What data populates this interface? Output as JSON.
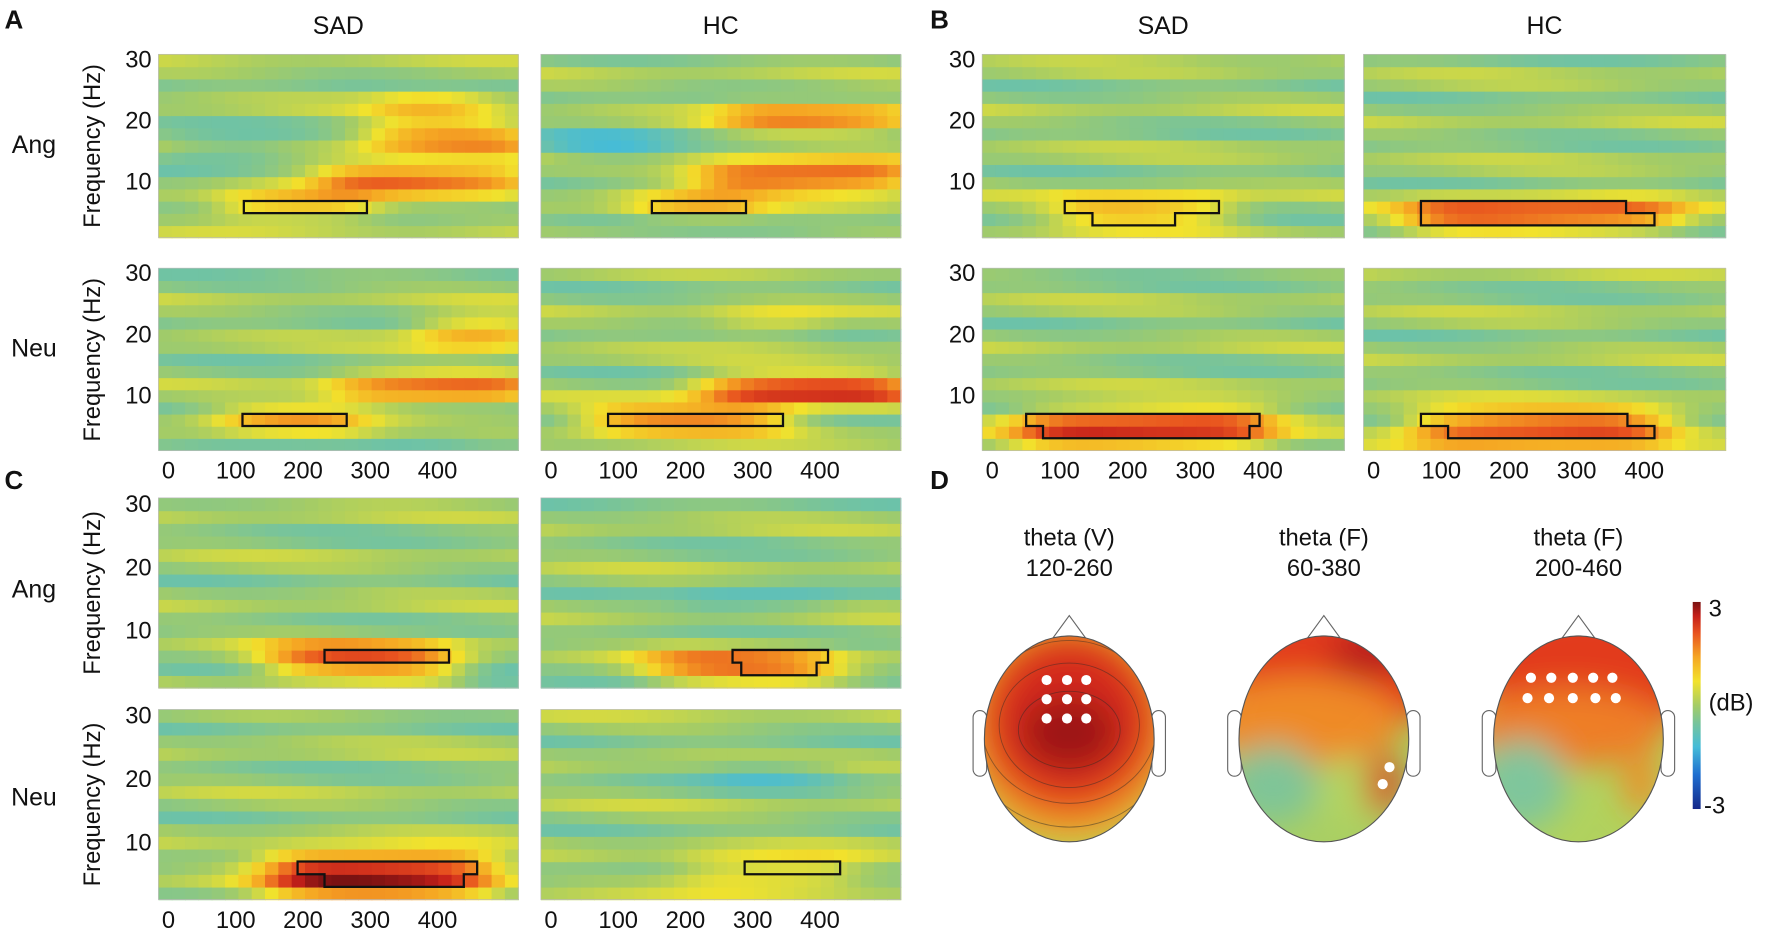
{
  "panel_letters": [
    "A",
    "B",
    "C",
    "D"
  ],
  "column_titles": {
    "A": [
      "SAD",
      "HC"
    ],
    "B": [
      "SAD",
      "HC"
    ]
  },
  "row_labels": {
    "A": [
      "Ang",
      "Neu"
    ],
    "C": [
      "Ang",
      "Neu"
    ]
  },
  "chart_data": {
    "type": "heatmap",
    "ylabel": "Frequency (Hz)",
    "xlabel": "",
    "xlim": [
      -15,
      520
    ],
    "ylim": [
      1,
      31
    ],
    "xticks": [
      "0",
      "100",
      "200",
      "300",
      "400"
    ],
    "yticks": [
      "30",
      "20",
      "10"
    ],
    "colorbar": {
      "min": -3,
      "max": 3,
      "label": "(dB)",
      "max_label": "3",
      "min_label": "-3",
      "colormap": [
        [
          -3,
          "#14288a"
        ],
        [
          -2,
          "#1f6fd0"
        ],
        [
          -1.2,
          "#45bcd8"
        ],
        [
          -0.5,
          "#78c49a"
        ],
        [
          0,
          "#a4cc66"
        ],
        [
          0.7,
          "#f2e22c"
        ],
        [
          1.4,
          "#f5a623"
        ],
        [
          2.1,
          "#e8521f"
        ],
        [
          2.6,
          "#c41f1a"
        ],
        [
          3,
          "#7a1212"
        ]
      ]
    },
    "maps": [
      {
        "panel": "A",
        "group": "SAD",
        "condition": "Ang",
        "features": [
          {
            "t": [
              80,
              300
            ],
            "f": [
              4.5,
              8
            ],
            "amp": 2.1
          },
          {
            "t": [
              230,
              540
            ],
            "f": [
              9,
              13
            ],
            "amp": 2.5
          },
          {
            "t": [
              300,
              540
            ],
            "f": [
              15,
              20
            ],
            "amp": 1.8
          },
          {
            "t": [
              320,
              470
            ],
            "f": [
              21,
              25
            ],
            "amp": 1.3
          },
          {
            "t": [
              -20,
              160
            ],
            "f": [
              13,
              17
            ],
            "amp": -0.9
          }
        ],
        "cluster": [
          [
            112,
            7
          ],
          [
            295,
            7
          ],
          [
            295,
            5
          ],
          [
            112,
            5
          ]
        ]
      },
      {
        "panel": "A",
        "group": "HC",
        "condition": "Ang",
        "features": [
          {
            "t": [
              120,
              300
            ],
            "f": [
              4.5,
              8
            ],
            "amp": 1.5
          },
          {
            "t": [
              220,
              540
            ],
            "f": [
              9,
              13
            ],
            "amp": 3.0
          },
          {
            "t": [
              260,
              540
            ],
            "f": [
              19,
              23
            ],
            "amp": 2.0
          },
          {
            "t": [
              -20,
              160
            ],
            "f": [
              14,
              18
            ],
            "amp": -1.1
          }
        ],
        "cluster": [
          [
            150,
            7
          ],
          [
            290,
            7
          ],
          [
            290,
            5
          ],
          [
            150,
            5
          ]
        ]
      },
      {
        "panel": "A",
        "group": "SAD",
        "condition": "Neu",
        "features": [
          {
            "t": [
              80,
              280
            ],
            "f": [
              4.5,
              8
            ],
            "amp": 1.8
          },
          {
            "t": [
              250,
              540
            ],
            "f": [
              9,
              13
            ],
            "amp": 2.3
          },
          {
            "t": [
              380,
              540
            ],
            "f": [
              18,
              23
            ],
            "amp": 1.8
          },
          {
            "t": [
              300,
              450
            ],
            "f": [
              2,
              4
            ],
            "amp": -0.9
          }
        ],
        "cluster": [
          [
            110,
            7
          ],
          [
            265,
            7
          ],
          [
            265,
            5
          ],
          [
            110,
            5
          ]
        ]
      },
      {
        "panel": "A",
        "group": "HC",
        "condition": "Neu",
        "features": [
          {
            "t": [
              60,
              350
            ],
            "f": [
              4.5,
              8
            ],
            "amp": 2.5
          },
          {
            "t": [
              230,
              540
            ],
            "f": [
              9,
              13
            ],
            "amp": 3.0
          },
          {
            "t": [
              250,
              400
            ],
            "f": [
              20,
              24
            ],
            "amp": 1.0
          }
        ],
        "cluster": [
          [
            85,
            7
          ],
          [
            345,
            7
          ],
          [
            345,
            5
          ],
          [
            85,
            5
          ]
        ]
      },
      {
        "panel": "B",
        "group": "SAD",
        "condition": "Ang",
        "features": [
          {
            "t": [
              100,
              350
            ],
            "f": [
              3,
              8
            ],
            "amp": 1.6
          }
        ],
        "cluster": [
          [
            107,
            7
          ],
          [
            335,
            7
          ],
          [
            335,
            5
          ],
          [
            270,
            5
          ],
          [
            270,
            3
          ],
          [
            148,
            3
          ],
          [
            148,
            5
          ],
          [
            107,
            5
          ]
        ]
      },
      {
        "panel": "B",
        "group": "HC",
        "condition": "Ang",
        "features": [
          {
            "t": [
              50,
              450
            ],
            "f": [
              2.5,
              7
            ],
            "amp": 2.6
          }
        ],
        "cluster": [
          [
            70,
            7
          ],
          [
            373,
            7
          ],
          [
            373,
            5
          ],
          [
            415,
            5
          ],
          [
            415,
            3
          ],
          [
            70,
            3
          ]
        ]
      },
      {
        "panel": "B",
        "group": "SAD",
        "condition": "Neu",
        "features": [
          {
            "t": [
              40,
              410
            ],
            "f": [
              2,
              7.5
            ],
            "amp": 2.7
          }
        ],
        "cluster": [
          [
            50,
            7
          ],
          [
            395,
            7
          ],
          [
            395,
            5
          ],
          [
            380,
            5
          ],
          [
            380,
            3
          ],
          [
            75,
            3
          ],
          [
            75,
            5
          ],
          [
            50,
            5
          ]
        ]
      },
      {
        "panel": "B",
        "group": "HC",
        "condition": "Neu",
        "features": [
          {
            "t": [
              60,
              430
            ],
            "f": [
              2,
              7.5
            ],
            "amp": 2.6
          }
        ],
        "cluster": [
          [
            70,
            7
          ],
          [
            375,
            7
          ],
          [
            375,
            5
          ],
          [
            415,
            5
          ],
          [
            415,
            3
          ],
          [
            110,
            3
          ],
          [
            110,
            5
          ],
          [
            70,
            5
          ]
        ]
      },
      {
        "panel": "C",
        "group": "SAD",
        "condition": "Ang",
        "features": [
          {
            "t": [
              150,
              420
            ],
            "f": [
              3,
              8
            ],
            "amp": 2.4
          },
          {
            "t": [
              440,
              540
            ],
            "f": [
              0,
              3
            ],
            "amp": -1.6
          }
        ],
        "cluster": [
          [
            232,
            7
          ],
          [
            417,
            7
          ],
          [
            417,
            5
          ],
          [
            232,
            5
          ]
        ]
      },
      {
        "panel": "C",
        "group": "HC",
        "condition": "Ang",
        "features": [
          {
            "t": [
              150,
              420
            ],
            "f": [
              2,
              7
            ],
            "amp": 2.0
          },
          {
            "t": [
              200,
              420
            ],
            "f": [
              13,
              17
            ],
            "amp": -0.8
          }
        ],
        "cluster": [
          [
            270,
            7
          ],
          [
            412,
            7
          ],
          [
            412,
            5
          ],
          [
            395,
            5
          ],
          [
            395,
            3
          ],
          [
            283,
            3
          ],
          [
            283,
            5
          ],
          [
            270,
            5
          ]
        ]
      },
      {
        "panel": "C",
        "group": "SAD",
        "condition": "Neu",
        "features": [
          {
            "t": [
              150,
              480
            ],
            "f": [
              2,
              8.5
            ],
            "amp": 3.0
          }
        ],
        "cluster": [
          [
            192,
            7
          ],
          [
            459,
            7
          ],
          [
            459,
            5
          ],
          [
            439,
            5
          ],
          [
            439,
            3
          ],
          [
            232,
            3
          ],
          [
            232,
            5
          ],
          [
            192,
            5
          ]
        ]
      },
      {
        "panel": "C",
        "group": "HC",
        "condition": "Neu",
        "features": [
          {
            "t": [
              200,
              450
            ],
            "f": [
              3,
              8
            ],
            "amp": 1.3
          },
          {
            "t": [
              250,
              420
            ],
            "f": [
              19,
              23
            ],
            "amp": -0.8
          }
        ],
        "cluster": [
          [
            288,
            7
          ],
          [
            430,
            7
          ],
          [
            430,
            5
          ],
          [
            288,
            5
          ]
        ]
      }
    ],
    "topomaps": [
      {
        "band": "theta (V)",
        "window": "120-260"
      },
      {
        "band": "theta (F)",
        "window": "60-380"
      },
      {
        "band": "theta (F)",
        "window": "200-460"
      }
    ]
  }
}
